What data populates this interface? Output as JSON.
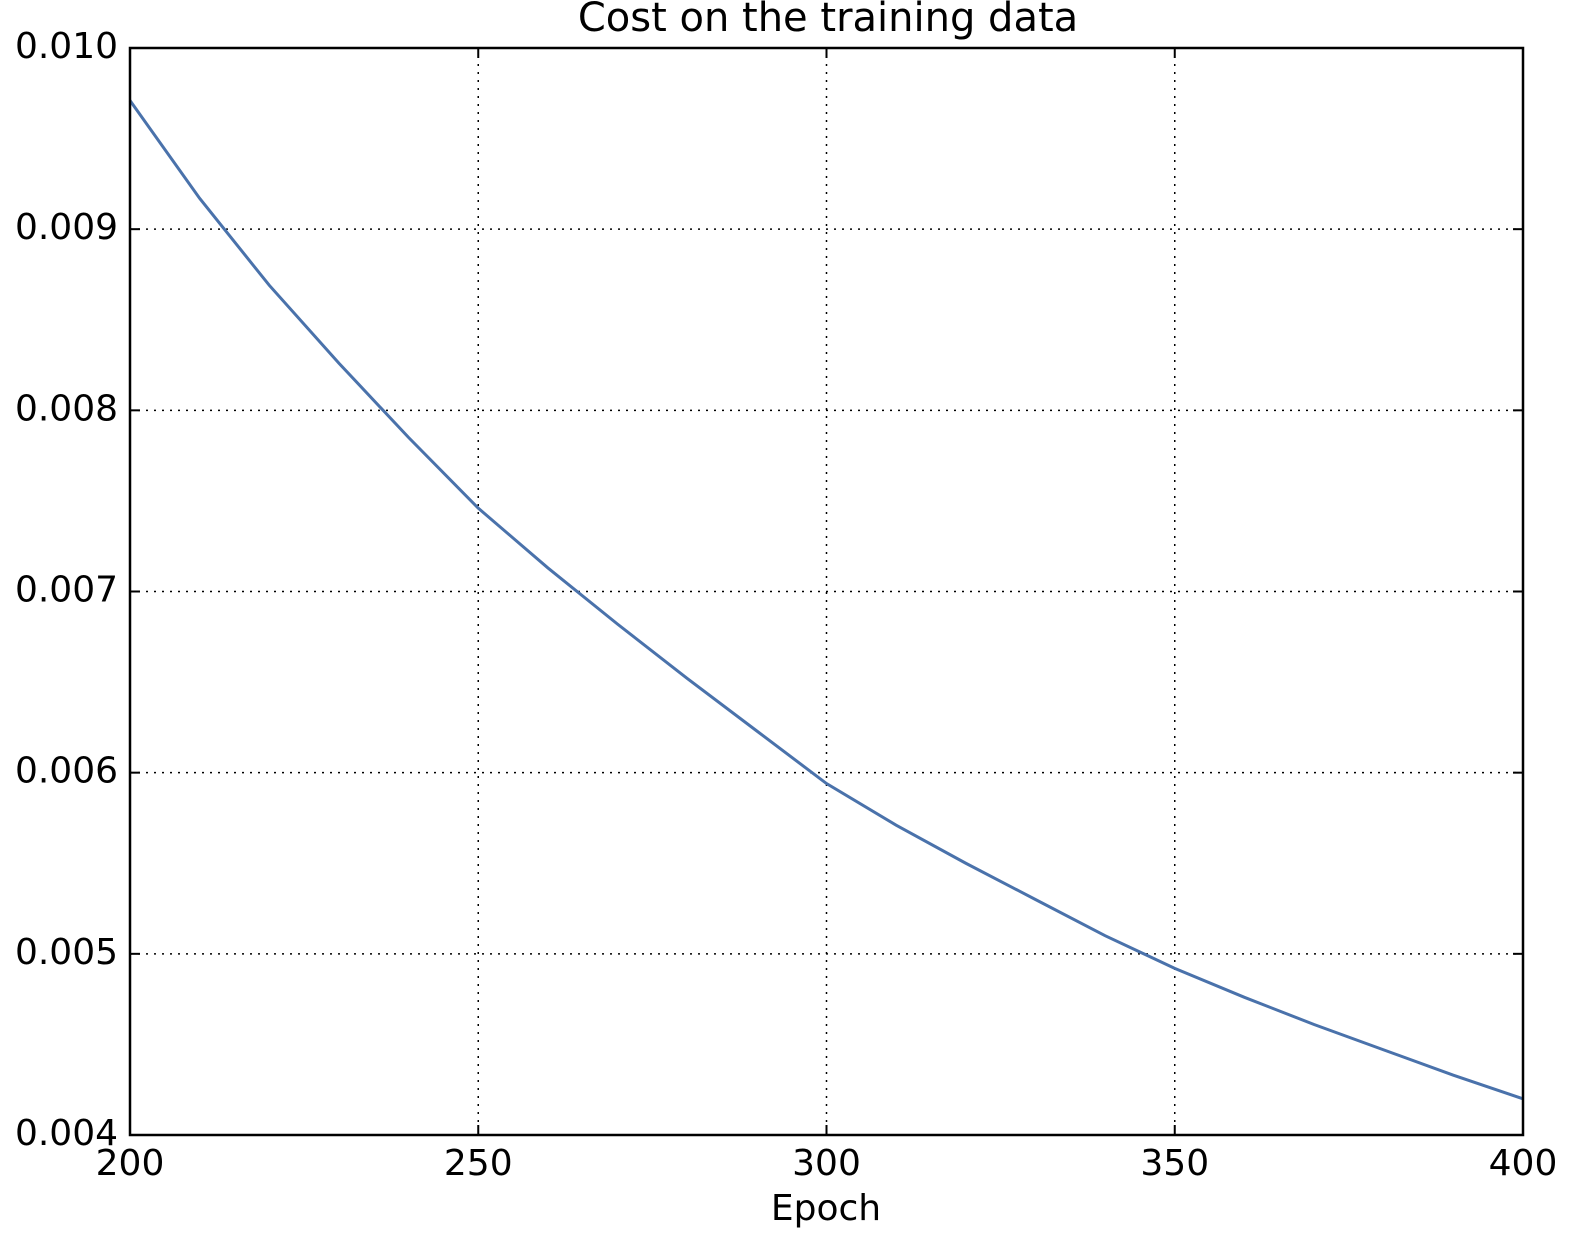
{
  "chart_data": {
    "type": "line",
    "title": "Cost on the training data",
    "x_label": "Epoch",
    "x": [
      200,
      210,
      220,
      230,
      240,
      250,
      260,
      270,
      280,
      290,
      300,
      310,
      320,
      330,
      340,
      350,
      360,
      370,
      380,
      390,
      400
    ],
    "series": [
      {
        "color": "#4a72ab",
        "values": [
          0.00971,
          0.00917,
          0.00869,
          0.00826,
          0.00785,
          0.00746,
          0.00713,
          0.00682,
          0.00652,
          0.00623,
          0.00594,
          0.00571,
          0.0055,
          0.0053,
          0.0051,
          0.00492,
          0.00476,
          0.00461,
          0.00447,
          0.00433,
          0.0042
        ]
      }
    ],
    "xlim": [
      200,
      400
    ],
    "xticks": [
      200,
      250,
      300,
      350,
      400
    ],
    "ylim": [
      0.004,
      0.01
    ],
    "yticks": [
      0.004,
      0.005,
      0.006,
      0.007,
      0.008,
      0.009,
      {
        "value": 0.01,
        "label": "0.010"
      }
    ],
    "grid": true
  }
}
